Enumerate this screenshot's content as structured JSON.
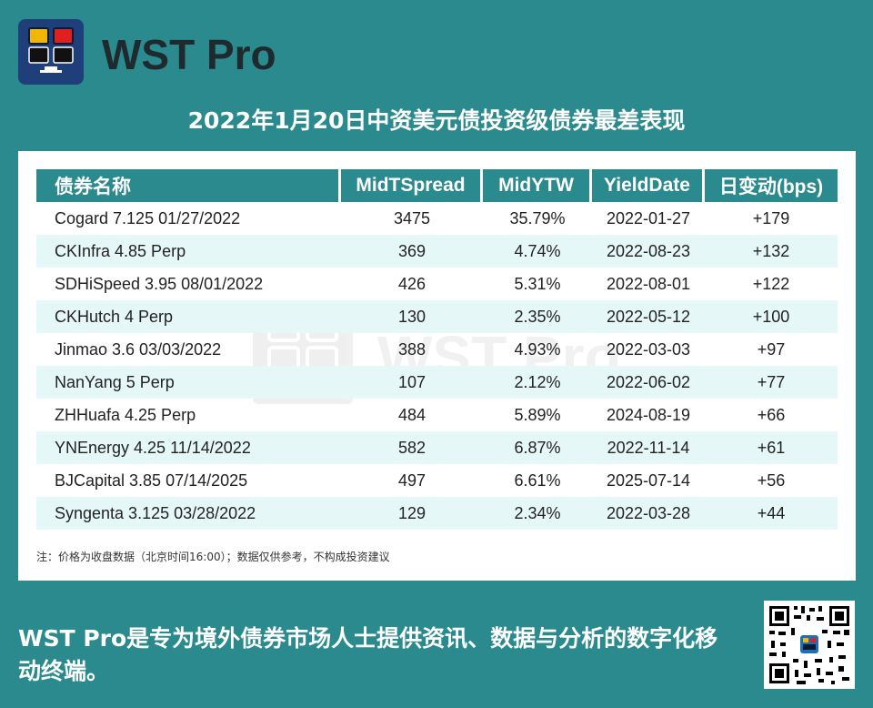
{
  "brand": {
    "name": "WST Pro",
    "logo_colors": {
      "background": "#1f3f7a",
      "top_left": "#f2b705",
      "top_right": "#e02020",
      "bottom": "#111111"
    }
  },
  "title": "2022年1月20日中资美元债投资级债券最差表现",
  "table": {
    "columns": [
      "债券名称",
      "MidTSpread",
      "MidYTW",
      "YieldDate",
      "日变动(bps)"
    ],
    "rows": [
      {
        "name": "Cogard 7.125 01/27/2022",
        "spread": "3475",
        "ytw": "35.79%",
        "date": "2022-01-27",
        "change": "+179"
      },
      {
        "name": "CKInfra 4.85 Perp",
        "spread": "369",
        "ytw": "4.74%",
        "date": "2022-08-23",
        "change": "+132"
      },
      {
        "name": "SDHiSpeed 3.95 08/01/2022",
        "spread": "426",
        "ytw": "5.31%",
        "date": "2022-08-01",
        "change": "+122"
      },
      {
        "name": "CKHutch 4 Perp",
        "spread": "130",
        "ytw": "2.35%",
        "date": "2022-05-12",
        "change": "+100"
      },
      {
        "name": "Jinmao 3.6 03/03/2022",
        "spread": "388",
        "ytw": "4.93%",
        "date": "2022-03-03",
        "change": "+97"
      },
      {
        "name": "NanYang 5 Perp",
        "spread": "107",
        "ytw": "2.12%",
        "date": "2022-06-02",
        "change": "+77"
      },
      {
        "name": "ZHHuafa 4.25 Perp",
        "spread": "484",
        "ytw": "5.89%",
        "date": "2024-08-19",
        "change": "+66"
      },
      {
        "name": "YNEnergy 4.25 11/14/2022",
        "spread": "582",
        "ytw": "6.87%",
        "date": "2022-11-14",
        "change": "+61"
      },
      {
        "name": "BJCapital 3.85 07/14/2025",
        "spread": "497",
        "ytw": "6.61%",
        "date": "2025-07-14",
        "change": "+56"
      },
      {
        "name": "Syngenta 3.125 03/28/2022",
        "spread": "129",
        "ytw": "2.34%",
        "date": "2022-03-28",
        "change": "+44"
      }
    ]
  },
  "note": "注：价格为收盘数据（北京时间16:00）；数据仅供参考，不构成投资建议",
  "tagline": "WST Pro是专为境外债券市场人士提供资讯、数据与分析的数字化移动终端。",
  "colors": {
    "page_background": "#2a8a8e",
    "header_background": "#2a8a8e",
    "row_shade": "#e6f7f8"
  }
}
